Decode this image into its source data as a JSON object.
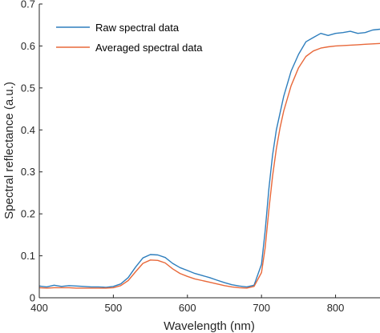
{
  "chart_data": {
    "type": "line",
    "title": "",
    "xlabel": "Wavelength (nm)",
    "ylabel": "Spectral reflectance (a.u.)",
    "xlim": [
      400,
      860
    ],
    "ylim": [
      0,
      0.7
    ],
    "xticks": [
      "400",
      "500",
      "600",
      "700",
      "800"
    ],
    "yticks": [
      "0",
      "0.1",
      "0.2",
      "0.3",
      "0.4",
      "0.5",
      "0.6",
      "0.7"
    ],
    "grid": false,
    "legend_position": "top-left",
    "series": [
      {
        "name": "Raw spectral data",
        "color": "#2e7ebd",
        "points": [
          [
            400,
            0.028
          ],
          [
            410,
            0.026
          ],
          [
            420,
            0.03
          ],
          [
            430,
            0.027
          ],
          [
            440,
            0.029
          ],
          [
            450,
            0.028
          ],
          [
            460,
            0.027
          ],
          [
            470,
            0.026
          ],
          [
            480,
            0.026
          ],
          [
            490,
            0.025
          ],
          [
            500,
            0.027
          ],
          [
            510,
            0.033
          ],
          [
            520,
            0.048
          ],
          [
            530,
            0.073
          ],
          [
            540,
            0.095
          ],
          [
            550,
            0.103
          ],
          [
            560,
            0.102
          ],
          [
            570,
            0.096
          ],
          [
            580,
            0.082
          ],
          [
            590,
            0.072
          ],
          [
            600,
            0.065
          ],
          [
            610,
            0.058
          ],
          [
            620,
            0.053
          ],
          [
            630,
            0.048
          ],
          [
            640,
            0.042
          ],
          [
            650,
            0.036
          ],
          [
            660,
            0.031
          ],
          [
            670,
            0.028
          ],
          [
            680,
            0.026
          ],
          [
            690,
            0.03
          ],
          [
            700,
            0.08
          ],
          [
            705,
            0.16
          ],
          [
            710,
            0.26
          ],
          [
            715,
            0.34
          ],
          [
            720,
            0.4
          ],
          [
            725,
            0.44
          ],
          [
            730,
            0.48
          ],
          [
            740,
            0.54
          ],
          [
            750,
            0.58
          ],
          [
            760,
            0.61
          ],
          [
            770,
            0.62
          ],
          [
            780,
            0.63
          ],
          [
            790,
            0.625
          ],
          [
            800,
            0.63
          ],
          [
            810,
            0.632
          ],
          [
            820,
            0.635
          ],
          [
            830,
            0.63
          ],
          [
            840,
            0.632
          ],
          [
            850,
            0.638
          ],
          [
            860,
            0.64
          ]
        ]
      },
      {
        "name": "Averaged spectral data",
        "color": "#e8683a",
        "points": [
          [
            400,
            0.024
          ],
          [
            410,
            0.023
          ],
          [
            420,
            0.024
          ],
          [
            430,
            0.024
          ],
          [
            440,
            0.024
          ],
          [
            450,
            0.023
          ],
          [
            460,
            0.023
          ],
          [
            470,
            0.023
          ],
          [
            480,
            0.023
          ],
          [
            490,
            0.023
          ],
          [
            500,
            0.024
          ],
          [
            510,
            0.029
          ],
          [
            520,
            0.041
          ],
          [
            530,
            0.062
          ],
          [
            540,
            0.082
          ],
          [
            550,
            0.09
          ],
          [
            560,
            0.089
          ],
          [
            570,
            0.083
          ],
          [
            580,
            0.069
          ],
          [
            590,
            0.058
          ],
          [
            600,
            0.051
          ],
          [
            610,
            0.045
          ],
          [
            620,
            0.041
          ],
          [
            630,
            0.037
          ],
          [
            640,
            0.033
          ],
          [
            650,
            0.029
          ],
          [
            660,
            0.026
          ],
          [
            670,
            0.024
          ],
          [
            680,
            0.023
          ],
          [
            690,
            0.027
          ],
          [
            700,
            0.06
          ],
          [
            705,
            0.12
          ],
          [
            710,
            0.21
          ],
          [
            715,
            0.29
          ],
          [
            720,
            0.355
          ],
          [
            725,
            0.405
          ],
          [
            730,
            0.445
          ],
          [
            740,
            0.505
          ],
          [
            750,
            0.548
          ],
          [
            760,
            0.575
          ],
          [
            770,
            0.588
          ],
          [
            780,
            0.595
          ],
          [
            790,
            0.598
          ],
          [
            800,
            0.6
          ],
          [
            810,
            0.601
          ],
          [
            820,
            0.602
          ],
          [
            830,
            0.603
          ],
          [
            840,
            0.604
          ],
          [
            850,
            0.605
          ],
          [
            860,
            0.606
          ]
        ]
      }
    ]
  }
}
